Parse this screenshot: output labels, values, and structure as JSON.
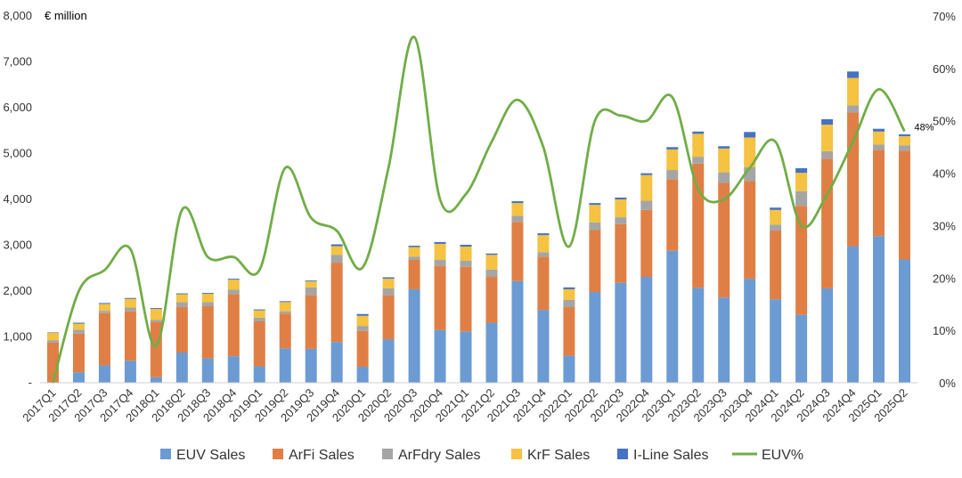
{
  "chart_data": {
    "type": "bar",
    "stacked": true,
    "unit_label": "€ million",
    "title": "",
    "xlabel": "",
    "ylabel": "",
    "ylim": [
      0,
      8000
    ],
    "y_ticks": [
      "-",
      "1,000",
      "2,000",
      "3,000",
      "4,000",
      "5,000",
      "6,000",
      "7,000",
      "8,000"
    ],
    "y2lim": [
      0,
      70
    ],
    "y2_ticks": [
      "0%",
      "10%",
      "20%",
      "30%",
      "40%",
      "50%",
      "60%",
      "70%"
    ],
    "grid": false,
    "legend_position": "bottom",
    "categories": [
      "2017Q1",
      "2017Q2",
      "2017Q3",
      "2017Q4",
      "2018Q1",
      "2018Q2",
      "2018Q3",
      "2018Q4",
      "2019Q1",
      "2019Q2",
      "2019Q3",
      "2019Q4",
      "2020Q1",
      "2020Q2",
      "2020Q3",
      "2020Q4",
      "2021Q1",
      "2021Q2",
      "2021Q3",
      "2021Q4",
      "2022Q1",
      "2022Q2",
      "2022Q3",
      "2022Q4",
      "2023Q1",
      "2023Q2",
      "2023Q3",
      "2023Q4",
      "2024Q1",
      "2024Q2",
      "2024Q3",
      "2024Q4",
      "2025Q1",
      "2025Q2"
    ],
    "series": [
      {
        "name": "EUV Sales",
        "color": "#6b9bd2",
        "values": [
          0,
          230,
          380,
          480,
          120,
          660,
          530,
          580,
          360,
          750,
          740,
          890,
          350,
          950,
          2040,
          1150,
          1120,
          1310,
          2220,
          1590,
          590,
          1980,
          2180,
          2310,
          2880,
          2070,
          1860,
          2270,
          1820,
          1480,
          2060,
          2980,
          3200,
          2690
        ]
      },
      {
        "name": "ArFi Sales",
        "color": "#e07f45",
        "values": [
          880,
          840,
          1140,
          1080,
          1200,
          990,
          1140,
          1350,
          980,
          760,
          1170,
          1730,
          780,
          960,
          640,
          1400,
          1410,
          1000,
          1290,
          1160,
          1060,
          1350,
          1280,
          1460,
          1560,
          2710,
          2500,
          2130,
          1500,
          2380,
          2830,
          2920,
          1880,
          2370
        ]
      },
      {
        "name": "ArFdry Sales",
        "color": "#a5a5a5",
        "values": [
          50,
          90,
          50,
          80,
          50,
          110,
          90,
          100,
          80,
          50,
          170,
          170,
          110,
          150,
          70,
          130,
          130,
          160,
          130,
          100,
          160,
          170,
          150,
          200,
          200,
          150,
          230,
          300,
          130,
          320,
          160,
          150,
          120,
          120
        ]
      },
      {
        "name": "KrF Sales",
        "color": "#f5c242",
        "values": [
          160,
          130,
          150,
          190,
          240,
          170,
          180,
          220,
          160,
          200,
          130,
          190,
          220,
          210,
          210,
          350,
          310,
          320,
          280,
          370,
          230,
          380,
          390,
          560,
          450,
          500,
          520,
          650,
          320,
          400,
          580,
          600,
          280,
          200
        ]
      },
      {
        "name": "I-Line Sales",
        "color": "#4472c4",
        "values": [
          10,
          20,
          20,
          20,
          20,
          20,
          20,
          20,
          20,
          20,
          20,
          40,
          40,
          30,
          30,
          40,
          40,
          30,
          40,
          40,
          40,
          40,
          40,
          40,
          50,
          50,
          50,
          120,
          50,
          100,
          120,
          140,
          60,
          40
        ]
      }
    ],
    "line_series": {
      "name": "EUV%",
      "color": "#70ad47",
      "axis": "right",
      "values": [
        0,
        17.5,
        21.5,
        25.5,
        7,
        33,
        24,
        24,
        21.5,
        41,
        31.5,
        29,
        22,
        41,
        66,
        35,
        36,
        46,
        54,
        45,
        26,
        50,
        51,
        50,
        54.5,
        37,
        35,
        41,
        46,
        30,
        36,
        46,
        56,
        48
      ]
    },
    "annotation": {
      "text": "48%",
      "category": "2025Q2",
      "series": "EUV%"
    }
  }
}
